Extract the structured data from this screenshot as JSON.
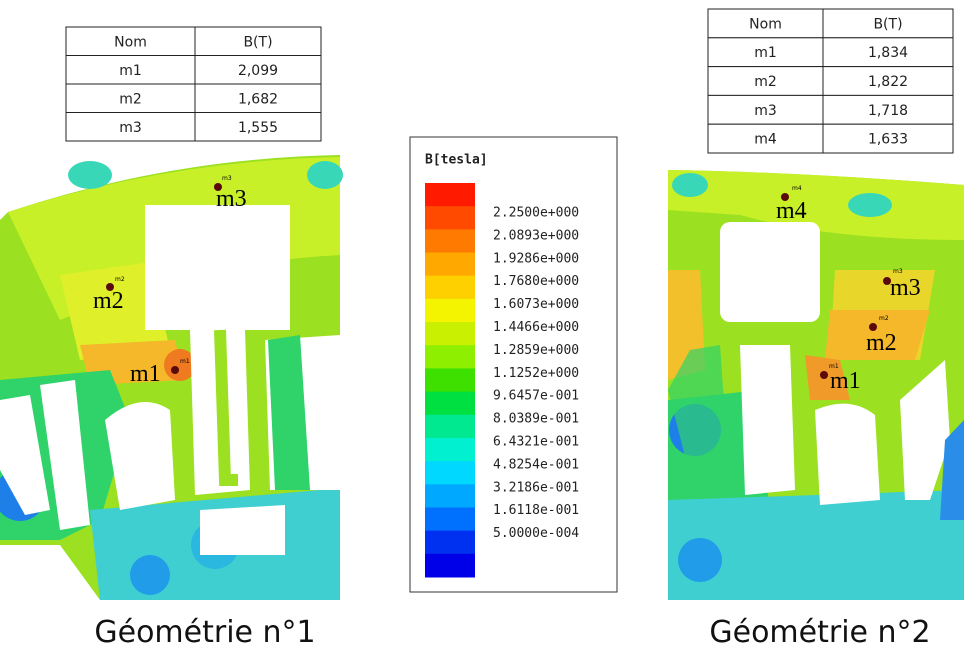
{
  "left_table": {
    "header": [
      "Nom",
      "B(T)"
    ],
    "rows": [
      [
        "m1",
        "2,099"
      ],
      [
        "m2",
        "1,682"
      ],
      [
        "m3",
        "1,555"
      ]
    ]
  },
  "right_table": {
    "header": [
      "Nom",
      "B(T)"
    ],
    "rows": [
      [
        "m1",
        "1,834"
      ],
      [
        "m2",
        "1,822"
      ],
      [
        "m3",
        "1,718"
      ],
      [
        "m4",
        "1,633"
      ]
    ]
  },
  "legend": {
    "title": "B[tesla]",
    "labels": [
      "2.2500e+000",
      "2.0893e+000",
      "1.9286e+000",
      "1.7680e+000",
      "1.6073e+000",
      "1.4466e+000",
      "1.2859e+000",
      "1.1252e+000",
      "9.6457e-001",
      "8.0389e-001",
      "6.4321e-001",
      "4.8254e-001",
      "3.2186e-001",
      "1.6118e-001",
      "5.0000e-004"
    ]
  },
  "left_map": {
    "markers": [
      "m1",
      "m2",
      "m3"
    ]
  },
  "right_map": {
    "markers": [
      "m1",
      "m2",
      "m3",
      "m4"
    ]
  },
  "captions": [
    "Géométrie n°1",
    "Géométrie n°2"
  ]
}
